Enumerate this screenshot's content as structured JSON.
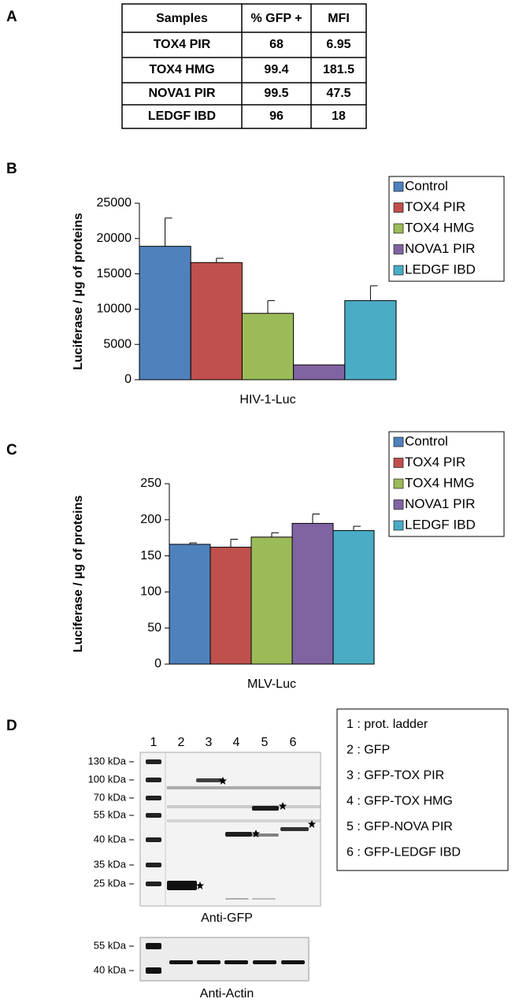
{
  "panels": [
    "A",
    "B",
    "C",
    "D"
  ],
  "table": {
    "header": [
      "Samples",
      "% GFP +",
      "MFI"
    ],
    "rows": [
      [
        "TOX4 PIR",
        "68",
        "6.95"
      ],
      [
        "TOX4 HMG",
        "99.4",
        "181.5"
      ],
      [
        "NOVA1 PIR",
        "99.5",
        "47.5"
      ],
      [
        "LEDGF IBD",
        "96",
        "18"
      ]
    ]
  },
  "chart_data": [
    {
      "type": "bar",
      "y_label": "Luciferase / µg of proteins",
      "categories": [
        "HIV-1-Luc"
      ],
      "ylim": [
        0,
        25000
      ],
      "yticks": [
        0,
        5000,
        10000,
        15000,
        20000,
        25000
      ],
      "legend": "right",
      "series": [
        {
          "name": "Control",
          "color": "#4f81bd",
          "values": [
            18900
          ],
          "errors": [
            4000
          ]
        },
        {
          "name": "TOX4 PIR",
          "color": "#c0504d",
          "values": [
            16600
          ],
          "errors": [
            600
          ]
        },
        {
          "name": "TOX4 HMG",
          "color": "#9bbb59",
          "values": [
            9400
          ],
          "errors": [
            1800
          ]
        },
        {
          "name": "NOVA1 PIR",
          "color": "#8064a2",
          "values": [
            2100
          ],
          "errors": [
            null
          ]
        },
        {
          "name": "LEDGF IBD",
          "color": "#4bacc6",
          "values": [
            11200
          ],
          "errors": [
            2100
          ]
        }
      ]
    },
    {
      "type": "bar",
      "y_label": "Luciferase / µg of proteins",
      "categories": [
        "MLV-Luc"
      ],
      "ylim": [
        0,
        250
      ],
      "yticks": [
        0,
        50,
        100,
        150,
        200,
        250
      ],
      "legend": "right",
      "series": [
        {
          "name": "Control",
          "color": "#4f81bd",
          "values": [
            166
          ],
          "errors": [
            2
          ]
        },
        {
          "name": "TOX4 PIR",
          "color": "#c0504d",
          "values": [
            162
          ],
          "errors": [
            11
          ]
        },
        {
          "name": "TOX4 HMG",
          "color": "#9bbb59",
          "values": [
            176
          ],
          "errors": [
            6
          ]
        },
        {
          "name": "NOVA1 PIR",
          "color": "#8064a2",
          "values": [
            195
          ],
          "errors": [
            13
          ]
        },
        {
          "name": "LEDGF IBD",
          "color": "#4bacc6",
          "values": [
            185
          ],
          "errors": [
            6
          ]
        }
      ]
    }
  ],
  "blot": {
    "lanes": [
      "1",
      "2",
      "3",
      "4",
      "5",
      "6"
    ],
    "gfp_markers": [
      "130 kDa",
      "100 kDa",
      "70 kDa",
      "55 kDa",
      "40 kDa",
      "35 kDa",
      "25 kDa"
    ],
    "gfp_caption": "Anti-GFP",
    "actin_markers": [
      "55 kDa",
      "40 kDa"
    ],
    "actin_caption": "Anti-Actin",
    "legend": [
      "1 : prot. ladder",
      "2 : GFP",
      "3 : GFP-TOX PIR",
      "4 : GFP-TOX HMG",
      "5 : GFP-NOVA PIR",
      "6 : GFP-LEDGF IBD"
    ]
  }
}
